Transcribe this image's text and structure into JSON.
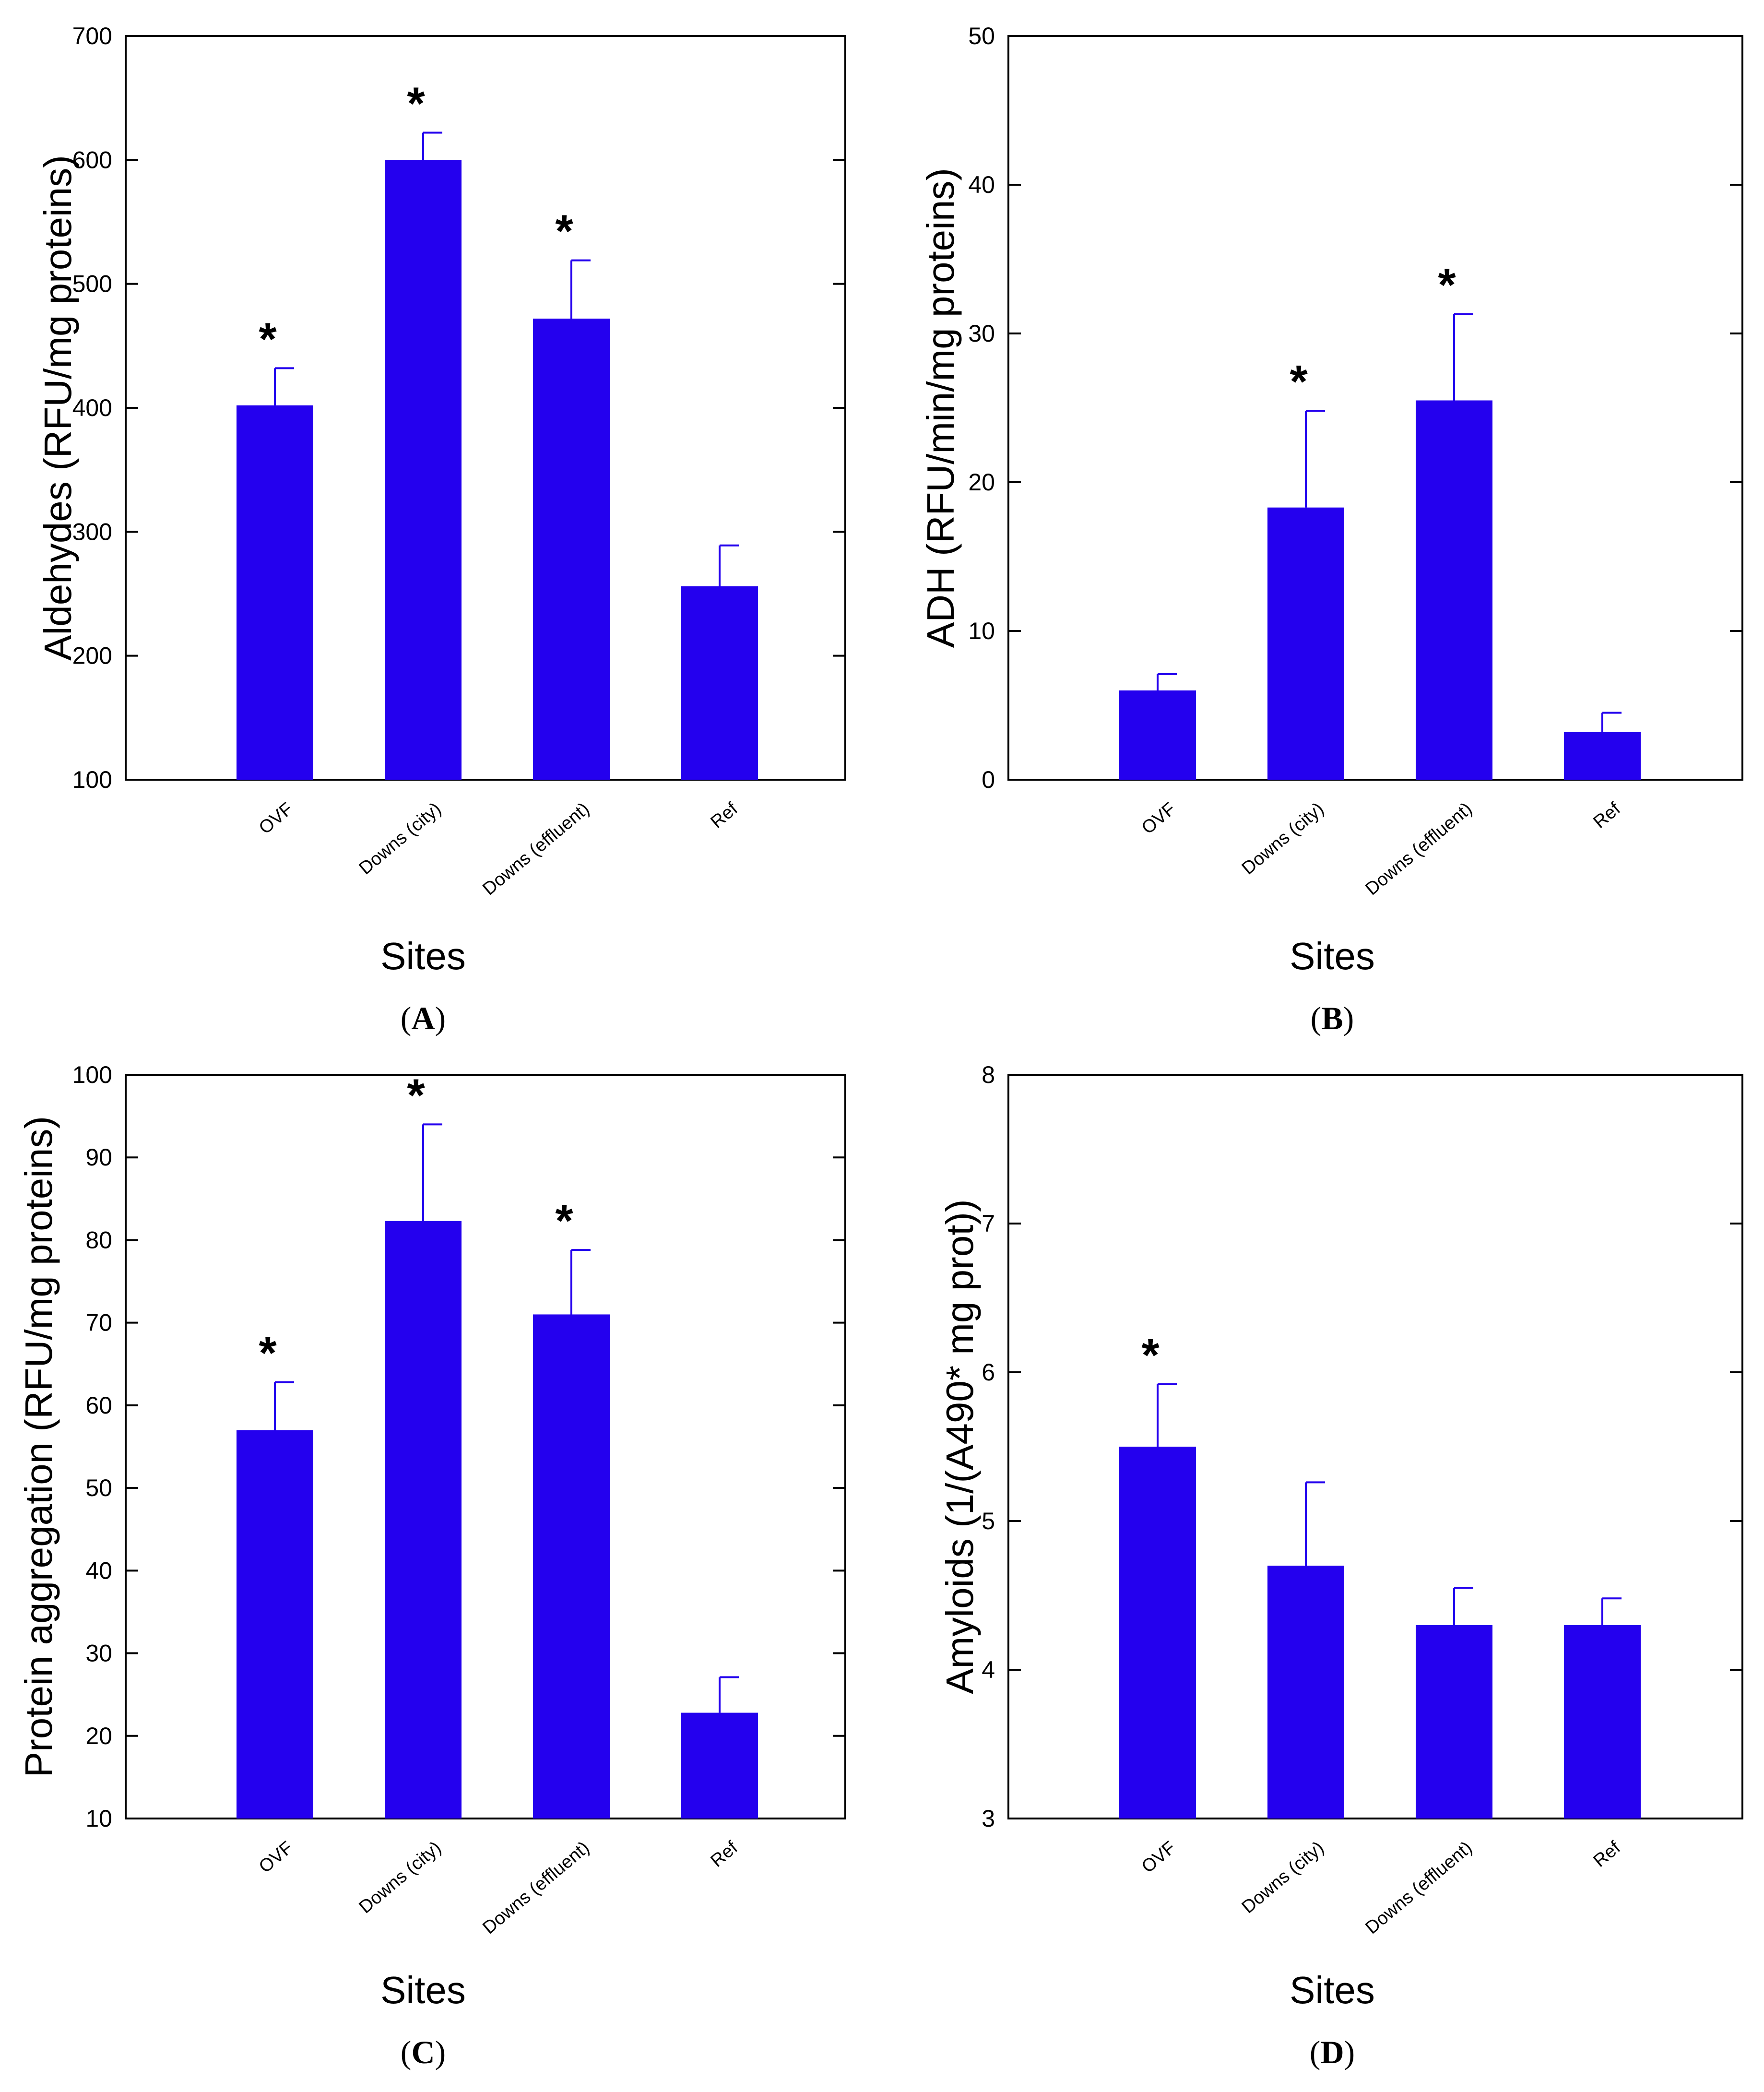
{
  "figure": {
    "bar_color": "#2400ee",
    "error_color": "#2400ee"
  },
  "chart_data": [
    {
      "type": "bar",
      "panel": "(A)",
      "panel_letter": "A",
      "categories": [
        "OVF",
        "Downs (city)",
        "Downs (effluent)",
        "Ref"
      ],
      "values": [
        402,
        600,
        472,
        256
      ],
      "errors": [
        30,
        22,
        47,
        33
      ],
      "significant": [
        true,
        true,
        true,
        false
      ],
      "xlabel": "Sites",
      "ylabel": "Aldehydes (RFU/mg proteins)",
      "ylim": [
        100,
        700
      ],
      "yticks": [
        100,
        200,
        300,
        400,
        500,
        600,
        700
      ],
      "star": "*"
    },
    {
      "type": "bar",
      "panel": "(B)",
      "panel_letter": "B",
      "categories": [
        "OVF",
        "Downs (city)",
        "Downs (effluent)",
        "Ref"
      ],
      "values": [
        6.0,
        18.3,
        25.5,
        3.2
      ],
      "errors": [
        1.1,
        6.5,
        5.8,
        1.3
      ],
      "significant": [
        false,
        true,
        true,
        false
      ],
      "xlabel": "Sites",
      "ylabel": "ADH (RFU/min/mg proteins)",
      "ylim": [
        0,
        50
      ],
      "yticks": [
        0,
        10,
        20,
        30,
        40,
        50
      ],
      "star": "*"
    },
    {
      "type": "bar",
      "panel": "(C)",
      "panel_letter": "C",
      "categories": [
        "OVF",
        "Downs (city)",
        "Downs (effluent)",
        "Ref"
      ],
      "values": [
        57,
        82.3,
        71,
        22.8
      ],
      "errors": [
        5.8,
        11.7,
        7.8,
        4.3
      ],
      "significant": [
        true,
        true,
        true,
        false
      ],
      "xlabel": "Sites",
      "ylabel": "Protein aggregation (RFU/mg proteins)",
      "ylim": [
        10,
        100
      ],
      "yticks": [
        10,
        20,
        30,
        40,
        50,
        60,
        70,
        80,
        90,
        100
      ],
      "star": "*"
    },
    {
      "type": "bar",
      "panel": "(D)",
      "panel_letter": "D",
      "categories": [
        "OVF",
        "Downs (city)",
        "Downs (effluent)",
        "Ref"
      ],
      "values": [
        5.5,
        4.7,
        4.3,
        4.3
      ],
      "errors": [
        0.42,
        0.56,
        0.25,
        0.18
      ],
      "significant": [
        true,
        false,
        false,
        false
      ],
      "xlabel": "Sites",
      "ylabel": "Amyloids (1/(A490* mg prot))",
      "ylim": [
        3,
        8
      ],
      "yticks": [
        3,
        4,
        5,
        6,
        7,
        8
      ],
      "star": "*"
    }
  ]
}
